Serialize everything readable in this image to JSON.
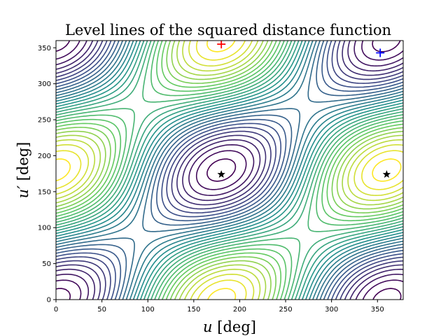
{
  "chart_data": {
    "type": "contour",
    "title": "Level lines of the squared distance function",
    "xlabel_var": "u",
    "xlabel_unit": " [deg]",
    "ylabel_var": "u′",
    "ylabel_unit": " [deg]",
    "xlim": [
      0,
      378
    ],
    "ylim": [
      0,
      360
    ],
    "xticks": [
      "0",
      "50",
      "100",
      "150",
      "200",
      "250",
      "300",
      "350"
    ],
    "xtick_values": [
      0,
      50,
      100,
      150,
      200,
      250,
      300,
      350
    ],
    "yticks": [
      "0",
      "50",
      "100",
      "150",
      "200",
      "250",
      "300",
      "350"
    ],
    "ytick_values": [
      0,
      50,
      100,
      150,
      200,
      250,
      300,
      350
    ],
    "grid": false,
    "colormap": "viridis",
    "colormap_stops": [
      "#440154",
      "#3b528b",
      "#21918c",
      "#5ec962",
      "#fde725"
    ],
    "markers": [
      {
        "name": "red-plus",
        "symbol": "+",
        "color": "#ff0000",
        "x": 180,
        "y": 355
      },
      {
        "name": "blue-plus",
        "symbol": "+",
        "color": "#0000ff",
        "x": 353,
        "y": 343
      },
      {
        "name": "star-center",
        "symbol": "star",
        "color": "#000000",
        "x": 180,
        "y": 174
      },
      {
        "name": "star-right",
        "symbol": "star",
        "color": "#000000",
        "x": 360,
        "y": 174
      }
    ]
  }
}
